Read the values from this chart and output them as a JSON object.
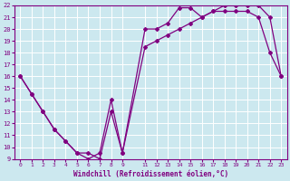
{
  "xlabel": "Windchill (Refroidissement éolien,°C)",
  "bg_color": "#cce8ef",
  "line_color": "#800080",
  "grid_color": "#ffffff",
  "line1_x": [
    0,
    1,
    2,
    3,
    4,
    5,
    6,
    7,
    8,
    9,
    11,
    12,
    13,
    14,
    15,
    16,
    17,
    18,
    19,
    20,
    21,
    22,
    23
  ],
  "line1_y": [
    16,
    14.5,
    13,
    11.5,
    10.5,
    9.5,
    9,
    9.5,
    14,
    9.5,
    20,
    20,
    20.5,
    21.8,
    21.8,
    21,
    21.5,
    21.5,
    21.5,
    21.5,
    21,
    18,
    16
  ],
  "line2_x": [
    0,
    1,
    2,
    3,
    4,
    5,
    6,
    7,
    8,
    9,
    11,
    12,
    13,
    14,
    15,
    16,
    17,
    18,
    19,
    20,
    21,
    22,
    23
  ],
  "line2_y": [
    16,
    14.5,
    13,
    11.5,
    10.5,
    9.5,
    9.5,
    9,
    13,
    9.5,
    18.5,
    19,
    19.5,
    20,
    20.5,
    21,
    21.5,
    22,
    22,
    22,
    22,
    21,
    16
  ],
  "ylim": [
    9,
    22
  ],
  "xlim": [
    -0.5,
    23.5
  ],
  "yticks": [
    9,
    10,
    11,
    12,
    13,
    14,
    15,
    16,
    17,
    18,
    19,
    20,
    21,
    22
  ],
  "xticks": [
    0,
    1,
    2,
    3,
    4,
    5,
    6,
    7,
    8,
    9,
    11,
    12,
    13,
    14,
    15,
    16,
    17,
    18,
    19,
    20,
    21,
    22,
    23
  ],
  "xtick_labels": [
    "0",
    "1",
    "2",
    "3",
    "4",
    "5",
    "6",
    "7",
    "8",
    "9",
    "11",
    "12",
    "13",
    "14",
    "15",
    "16",
    "17",
    "18",
    "19",
    "20",
    "21",
    "22",
    "23"
  ]
}
